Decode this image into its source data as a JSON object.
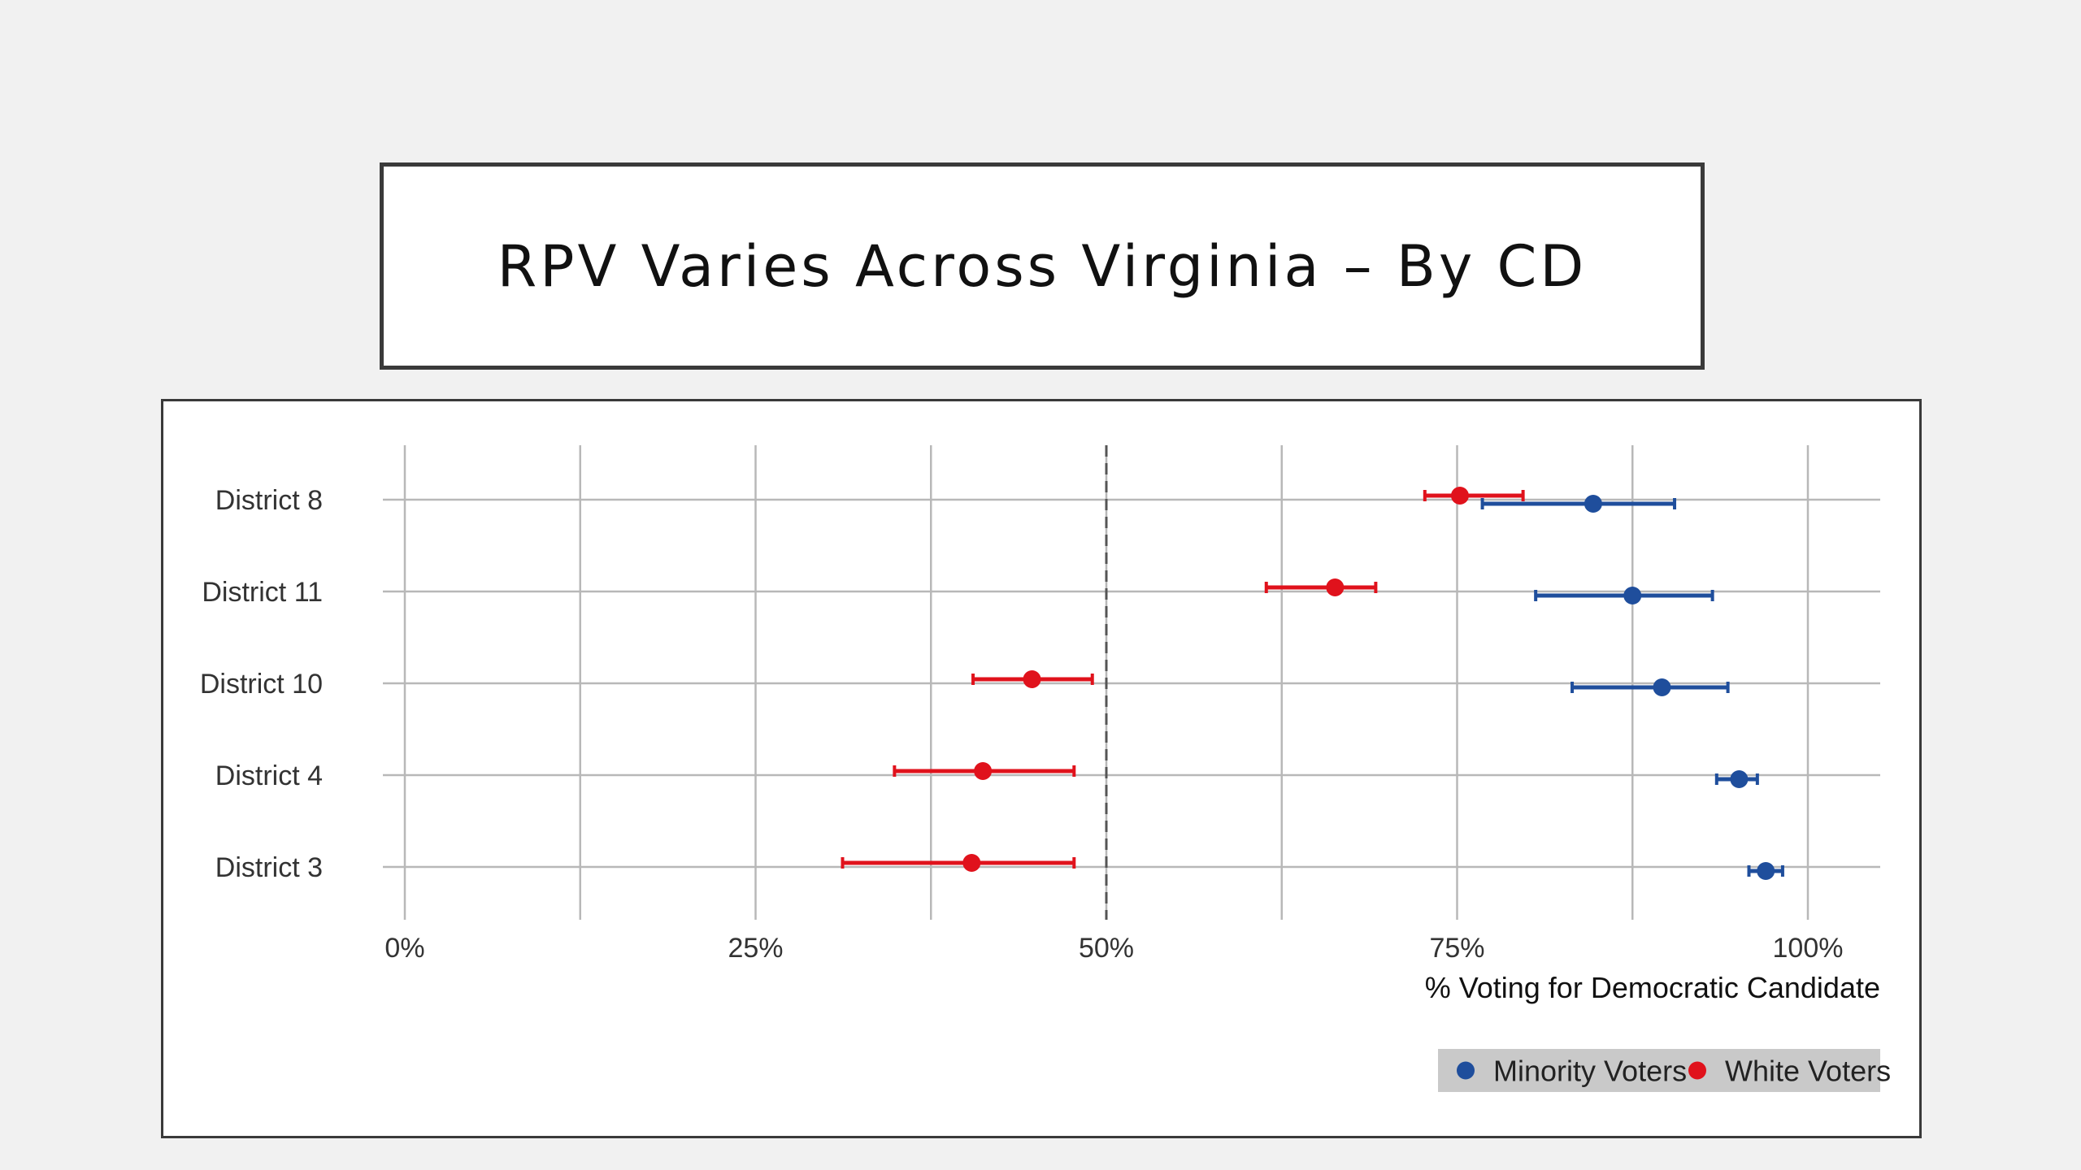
{
  "slide": {
    "title": "RPV Varies Across Virginia – By CD"
  },
  "chart_data": {
    "type": "scatter",
    "subtype": "dot-plot-with-error-bars",
    "categories": [
      "District 8",
      "District 11",
      "District 10",
      "District 4",
      "District 3"
    ],
    "xlabel": "% Voting for Democratic Candidate",
    "xlim": [
      0,
      1.05
    ],
    "xticks": [
      0,
      0.25,
      0.5,
      0.75,
      1.0
    ],
    "xtick_labels": [
      "0%",
      "25%",
      "50%",
      "75%",
      "100%"
    ],
    "reference_line": {
      "x": 0.5,
      "style": "dashed"
    },
    "grid": true,
    "legend_position": "bottom-right",
    "series": [
      {
        "name": "Minority Voters",
        "color": "#1f4e9c",
        "values": [
          0.847,
          0.875,
          0.896,
          0.951,
          0.97
        ],
        "lower": [
          0.768,
          0.806,
          0.832,
          0.935,
          0.958
        ],
        "upper": [
          0.905,
          0.932,
          0.943,
          0.964,
          0.982
        ]
      },
      {
        "name": "White Voters",
        "color": "#e0121c",
        "values": [
          0.752,
          0.663,
          0.447,
          0.412,
          0.404
        ],
        "lower": [
          0.727,
          0.614,
          0.405,
          0.349,
          0.312
        ],
        "upper": [
          0.797,
          0.692,
          0.49,
          0.477,
          0.477
        ]
      }
    ]
  }
}
